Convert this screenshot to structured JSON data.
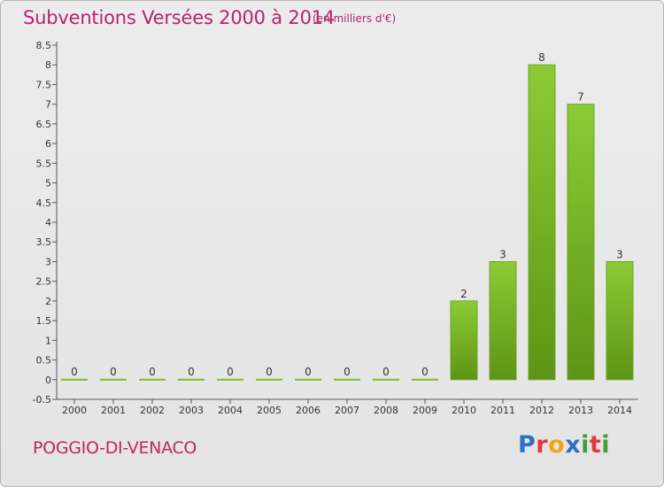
{
  "header": {
    "title": "Subventions Versées 2000 à 2014",
    "subtitle": "(en milliers d'€)"
  },
  "footer": {
    "commune": "POGGIO-DI-VENACO",
    "logo_letters": [
      "P",
      "r",
      "o",
      "x",
      "i",
      "t",
      "i"
    ],
    "logo_colors": [
      "#2f6fc4",
      "#e2383c",
      "#f2a31b",
      "#2f6fc4",
      "#3f9e3a",
      "#e2383c",
      "#3f9e3a"
    ]
  },
  "chart_data": {
    "type": "bar",
    "title": "Subventions Versées 2000 à 2014",
    "subtitle": "(en milliers d'€)",
    "categories": [
      "2000",
      "2001",
      "2002",
      "2003",
      "2004",
      "2005",
      "2006",
      "2007",
      "2008",
      "2009",
      "2010",
      "2011",
      "2012",
      "2013",
      "2014"
    ],
    "values": [
      0,
      0,
      0,
      0,
      0,
      0,
      0,
      0,
      0,
      0,
      2,
      3,
      8,
      7,
      3
    ],
    "data_labels": [
      "0",
      "0",
      "0",
      "0",
      "0",
      "0",
      "0",
      "0",
      "0",
      "0",
      "2",
      "3",
      "8",
      "7",
      "3"
    ],
    "y_ticks": [
      "-0.5",
      "0",
      "0.5",
      "1",
      "1.5",
      "2",
      "2.5",
      "3",
      "3.5",
      "4",
      "4.5",
      "5",
      "5.5",
      "6",
      "6.5",
      "7",
      "7.5",
      "8",
      "8.5"
    ],
    "ylim": [
      -0.5,
      8.5
    ],
    "grid": false,
    "bar_color": "#7fba2c",
    "bar_color_dark": "#5e9415"
  }
}
